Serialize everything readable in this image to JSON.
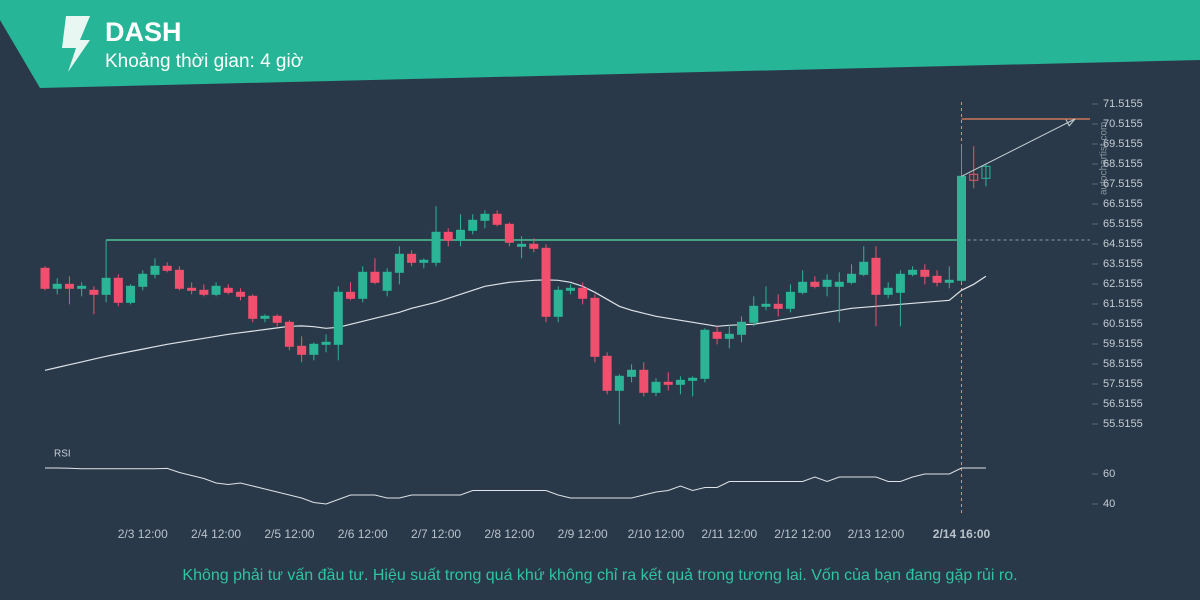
{
  "header": {
    "title": "DASH",
    "subtitle": "Khoảng thời gian: 4 giờ"
  },
  "footer": "Không phải tư vấn đầu tư. Hiệu suất trong quá khứ không chỉ ra kết quả trong tương lai. Vốn của bạn đang gặp rủi ro.",
  "watermark": "autochartist.com",
  "chart_data": {
    "type": "candlestick",
    "categories": [
      null,
      null,
      null,
      null,
      null,
      null,
      null,
      null,
      "2/3 12:00",
      null,
      null,
      null,
      null,
      null,
      "2/4 12:00",
      null,
      null,
      null,
      null,
      null,
      "2/5 12:00",
      null,
      null,
      null,
      null,
      null,
      "2/6 12:00",
      null,
      null,
      null,
      null,
      null,
      "2/7 12:00",
      null,
      null,
      null,
      null,
      null,
      "2/8 12:00",
      null,
      null,
      null,
      null,
      null,
      "2/9 12:00",
      null,
      null,
      null,
      null,
      null,
      "2/10 12:00",
      null,
      null,
      null,
      null,
      null,
      "2/11 12:00",
      null,
      null,
      null,
      null,
      null,
      "2/12 12:00",
      null,
      null,
      null,
      null,
      null,
      "2/13 12:00",
      null,
      null,
      null,
      null,
      null,
      null,
      "2/14 16:00",
      null,
      null
    ],
    "open": [
      63.3,
      62.3,
      62.5,
      62.3,
      62.2,
      62.0,
      62.8,
      61.6,
      62.4,
      63.0,
      63.4,
      63.2,
      62.3,
      62.2,
      62.0,
      62.3,
      62.1,
      61.9,
      60.8,
      60.9,
      60.6,
      59.4,
      59.0,
      59.5,
      59.5,
      62.1,
      61.8,
      63.1,
      62.2,
      63.1,
      64.0,
      63.6,
      63.6,
      65.1,
      64.7,
      65.2,
      65.7,
      66.0,
      65.5,
      64.4,
      64.5,
      64.3,
      60.9,
      62.2,
      62.3,
      61.8,
      58.9,
      57.2,
      57.9,
      58.2,
      57.1,
      57.6,
      57.5,
      57.7,
      57.8,
      60.1,
      59.8,
      60.0,
      60.6,
      61.4,
      61.5,
      61.3,
      62.1,
      62.6,
      62.4,
      62.4,
      62.6,
      63.0,
      63.8,
      62.0,
      62.1,
      63.0,
      63.2,
      62.9,
      62.6,
      62.7,
      68.0,
      67.8
    ],
    "high": [
      63.4,
      62.8,
      62.9,
      62.6,
      62.4,
      64.7,
      63.0,
      62.5,
      63.2,
      63.8,
      63.6,
      63.4,
      62.6,
      62.5,
      62.6,
      62.5,
      62.3,
      62.0,
      61.0,
      61.0,
      60.7,
      59.9,
      59.6,
      60.0,
      62.4,
      62.6,
      63.4,
      63.8,
      63.3,
      64.4,
      64.2,
      63.8,
      66.4,
      65.3,
      66.0,
      66.0,
      66.2,
      66.2,
      65.6,
      64.9,
      64.8,
      64.5,
      62.4,
      62.5,
      62.6,
      62.0,
      59.1,
      58.0,
      58.5,
      58.6,
      57.8,
      58.1,
      57.9,
      57.9,
      60.3,
      60.4,
      60.5,
      60.9,
      61.9,
      62.4,
      62.0,
      62.5,
      63.2,
      62.9,
      63.0,
      63.1,
      63.5,
      64.4,
      64.4,
      62.6,
      63.2,
      63.4,
      63.5,
      63.2,
      63.4,
      69.5,
      69.4,
      68.5
    ],
    "low": [
      62.2,
      62.0,
      61.5,
      61.9,
      61.0,
      61.6,
      61.4,
      61.5,
      62.2,
      62.8,
      63.1,
      62.2,
      62.0,
      61.9,
      61.9,
      62.0,
      61.7,
      60.6,
      60.6,
      60.4,
      59.2,
      58.6,
      58.7,
      59.1,
      58.7,
      61.7,
      61.6,
      62.5,
      61.9,
      62.5,
      63.4,
      63.3,
      63.4,
      64.4,
      64.4,
      65.0,
      65.3,
      65.4,
      64.4,
      63.8,
      64.1,
      60.6,
      60.6,
      62.0,
      61.5,
      58.6,
      57.0,
      55.5,
      57.6,
      56.9,
      56.9,
      57.2,
      57.0,
      56.9,
      57.6,
      59.5,
      59.3,
      59.6,
      60.4,
      61.2,
      60.9,
      61.1,
      62.0,
      62.3,
      61.9,
      60.6,
      62.5,
      62.9,
      60.4,
      61.8,
      60.4,
      62.9,
      62.5,
      62.4,
      62.3,
      62.6,
      67.3,
      67.4
    ],
    "close": [
      62.3,
      62.5,
      62.3,
      62.4,
      62.0,
      62.8,
      61.6,
      62.4,
      63.0,
      63.4,
      63.2,
      62.3,
      62.2,
      62.0,
      62.4,
      62.1,
      61.9,
      60.8,
      60.9,
      60.6,
      59.4,
      59.0,
      59.5,
      59.6,
      62.1,
      61.8,
      63.1,
      62.6,
      63.1,
      64.0,
      63.6,
      63.7,
      65.1,
      64.7,
      65.2,
      65.7,
      66.0,
      65.5,
      64.6,
      64.5,
      64.3,
      60.9,
      62.2,
      62.3,
      61.8,
      58.9,
      57.2,
      57.9,
      58.2,
      57.1,
      57.6,
      57.5,
      57.7,
      57.8,
      60.2,
      59.8,
      60.0,
      60.6,
      61.4,
      61.5,
      61.3,
      62.1,
      62.6,
      62.4,
      62.7,
      62.6,
      63.0,
      63.6,
      62.0,
      62.3,
      63.0,
      63.2,
      62.9,
      62.6,
      62.7,
      67.9,
      67.7,
      68.4
    ],
    "ma": [
      58.2,
      58.34,
      58.48,
      58.62,
      58.76,
      58.9,
      59.02,
      59.14,
      59.26,
      59.38,
      59.5,
      59.6,
      59.7,
      59.8,
      59.9,
      60.0,
      60.08,
      60.16,
      60.24,
      60.32,
      60.4,
      60.42,
      60.38,
      60.3,
      60.35,
      60.5,
      60.65,
      60.8,
      60.95,
      61.1,
      61.3,
      61.45,
      61.6,
      61.8,
      62.0,
      62.2,
      62.4,
      62.5,
      62.6,
      62.65,
      62.7,
      62.72,
      62.7,
      62.6,
      62.4,
      62.1,
      61.75,
      61.4,
      61.2,
      61.05,
      60.9,
      60.8,
      60.7,
      60.6,
      60.5,
      60.4,
      60.45,
      60.48,
      60.5,
      60.6,
      60.7,
      60.8,
      60.9,
      61.0,
      61.1,
      61.2,
      61.3,
      61.35,
      61.4,
      61.45,
      61.5,
      61.55,
      61.6,
      61.65,
      61.7,
      62.2,
      62.5,
      62.9
    ],
    "ma_color": "#dde3e8",
    "up_color": "#2bb596",
    "down_color": "#f0506e",
    "ylim": [
      55.2155,
      71.8155
    ],
    "yticks": [
      55.5155,
      56.5155,
      57.5155,
      58.5155,
      59.5155,
      60.5155,
      61.5155,
      62.5155,
      63.5155,
      64.5155,
      65.5155,
      66.5155,
      67.5155,
      68.5155,
      69.5155,
      70.5155,
      71.5155
    ],
    "resistance": {
      "value": 64.7155,
      "color": "#4cc597"
    },
    "target": {
      "value": 70.7655,
      "color": "#e8845a"
    },
    "rsi": {
      "label": "RSI",
      "color": "#dde3e8",
      "ylim": [
        34,
        66
      ],
      "yticks": [
        40,
        60
      ],
      "values": [
        64,
        64,
        63.8,
        63.5,
        63.5,
        63.5,
        63.5,
        63.5,
        63.5,
        63.5,
        63.7,
        61,
        59,
        57,
        54,
        53,
        54,
        52,
        50,
        48,
        46,
        44,
        41,
        40,
        43,
        46,
        46,
        46,
        44,
        44,
        46,
        46,
        46,
        46,
        46,
        49,
        49,
        49,
        49,
        49,
        49,
        49,
        46,
        44,
        44,
        44,
        44,
        44,
        44,
        46,
        48,
        49,
        52,
        49,
        51,
        51,
        55,
        55,
        55,
        55,
        55,
        55,
        55,
        58,
        55,
        58,
        58,
        58,
        58,
        55,
        55,
        58,
        60,
        60,
        60,
        64,
        64,
        64
      ]
    }
  }
}
